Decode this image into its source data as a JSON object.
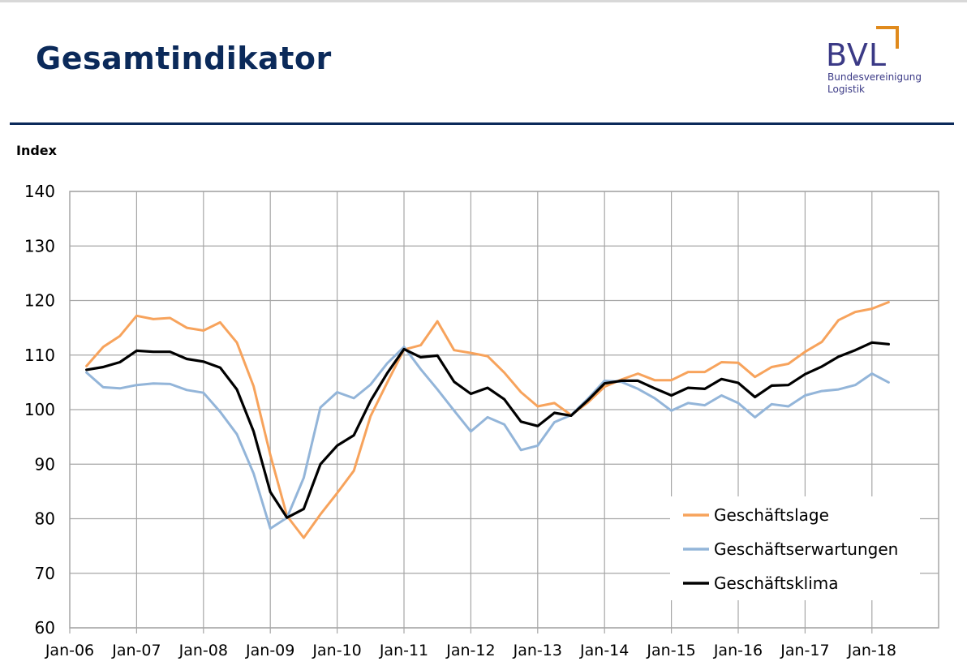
{
  "header": {
    "title": "Gesamtindikator",
    "logo": {
      "text": "BVL",
      "sub1": "Bundesvereinigung",
      "sub2": "Logistik",
      "accent": "#e08a1c",
      "color": "#3b3a86"
    }
  },
  "chart_data": {
    "type": "line",
    "ylabel": "Index",
    "ylim": [
      60,
      140
    ],
    "yticks": [
      60,
      70,
      80,
      90,
      100,
      110,
      120,
      130,
      140
    ],
    "xlabels": [
      "Jan-06",
      "Jan-07",
      "Jan-08",
      "Jan-09",
      "Jan-10",
      "Jan-11",
      "Jan-12",
      "Jan-13",
      "Jan-14",
      "Jan-15",
      "Jan-16",
      "Jan-17",
      "Jan-18"
    ],
    "x": [
      "Apr-06",
      "Jul-06",
      "Oct-06",
      "Jan-07",
      "Apr-07",
      "Jul-07",
      "Oct-07",
      "Jan-08",
      "Apr-08",
      "Jul-08",
      "Oct-08",
      "Jan-09",
      "Apr-09",
      "Jul-09",
      "Oct-09",
      "Jan-10",
      "Apr-10",
      "Jul-10",
      "Oct-10",
      "Jan-11",
      "Apr-11",
      "Jul-11",
      "Oct-11",
      "Jan-12",
      "Apr-12",
      "Jul-12",
      "Oct-12",
      "Jan-13",
      "Apr-13",
      "Jul-13",
      "Oct-13",
      "Jan-14",
      "Apr-14",
      "Jul-14",
      "Oct-14",
      "Jan-15",
      "Apr-15",
      "Jul-15",
      "Oct-15",
      "Jan-16",
      "Apr-16",
      "Jul-16",
      "Oct-16",
      "Jan-17",
      "Apr-17",
      "Jul-17",
      "Oct-17",
      "Jan-18",
      "Apr-18"
    ],
    "grid": true,
    "legend": "bottom-right",
    "series": [
      {
        "name": "Geschäftslage",
        "color": "#f7a35c",
        "values": [
          108.0,
          111.5,
          113.5,
          117.2,
          116.6,
          116.8,
          115.0,
          114.5,
          116.0,
          112.3,
          104.3,
          91.7,
          80.5,
          76.5,
          80.8,
          84.7,
          88.8,
          98.8,
          105.0,
          111.0,
          111.8,
          116.2,
          110.9,
          110.4,
          109.8,
          106.8,
          103.2,
          100.6,
          101.2,
          99.0,
          101.3,
          104.2,
          105.5,
          106.6,
          105.4,
          105.4,
          106.9,
          106.9,
          108.7,
          108.6,
          106.0,
          107.8,
          108.4,
          110.6,
          112.4,
          116.4,
          117.9,
          118.5,
          119.7
        ]
      },
      {
        "name": "Geschäftserwartungen",
        "color": "#93b5d9",
        "values": [
          106.8,
          104.1,
          103.9,
          104.5,
          104.8,
          104.7,
          103.6,
          103.1,
          99.6,
          95.5,
          88.3,
          78.2,
          80.2,
          87.5,
          100.4,
          103.2,
          102.1,
          104.6,
          108.5,
          111.5,
          107.4,
          103.7,
          99.8,
          96.0,
          98.6,
          97.3,
          92.6,
          93.4,
          97.7,
          99.0,
          102.0,
          105.3,
          105.1,
          103.8,
          102.1,
          99.8,
          101.2,
          100.8,
          102.6,
          101.2,
          98.6,
          101.0,
          100.6,
          102.6,
          103.4,
          103.7,
          104.5,
          106.6,
          105.0
        ]
      },
      {
        "name": "Geschäftsklima",
        "color": "#000000",
        "values": [
          107.3,
          107.8,
          108.7,
          110.8,
          110.6,
          110.6,
          109.3,
          108.8,
          107.7,
          103.7,
          96.0,
          84.9,
          80.2,
          81.8,
          90.0,
          93.4,
          95.3,
          101.6,
          106.7,
          111.1,
          109.6,
          109.9,
          105.1,
          102.9,
          104.0,
          101.9,
          97.8,
          97.0,
          99.4,
          98.9,
          101.7,
          104.8,
          105.3,
          105.3,
          103.9,
          102.6,
          104.0,
          103.8,
          105.6,
          104.9,
          102.3,
          104.4,
          104.5,
          106.5,
          107.9,
          109.7,
          110.9,
          112.3,
          112.0
        ]
      }
    ]
  }
}
